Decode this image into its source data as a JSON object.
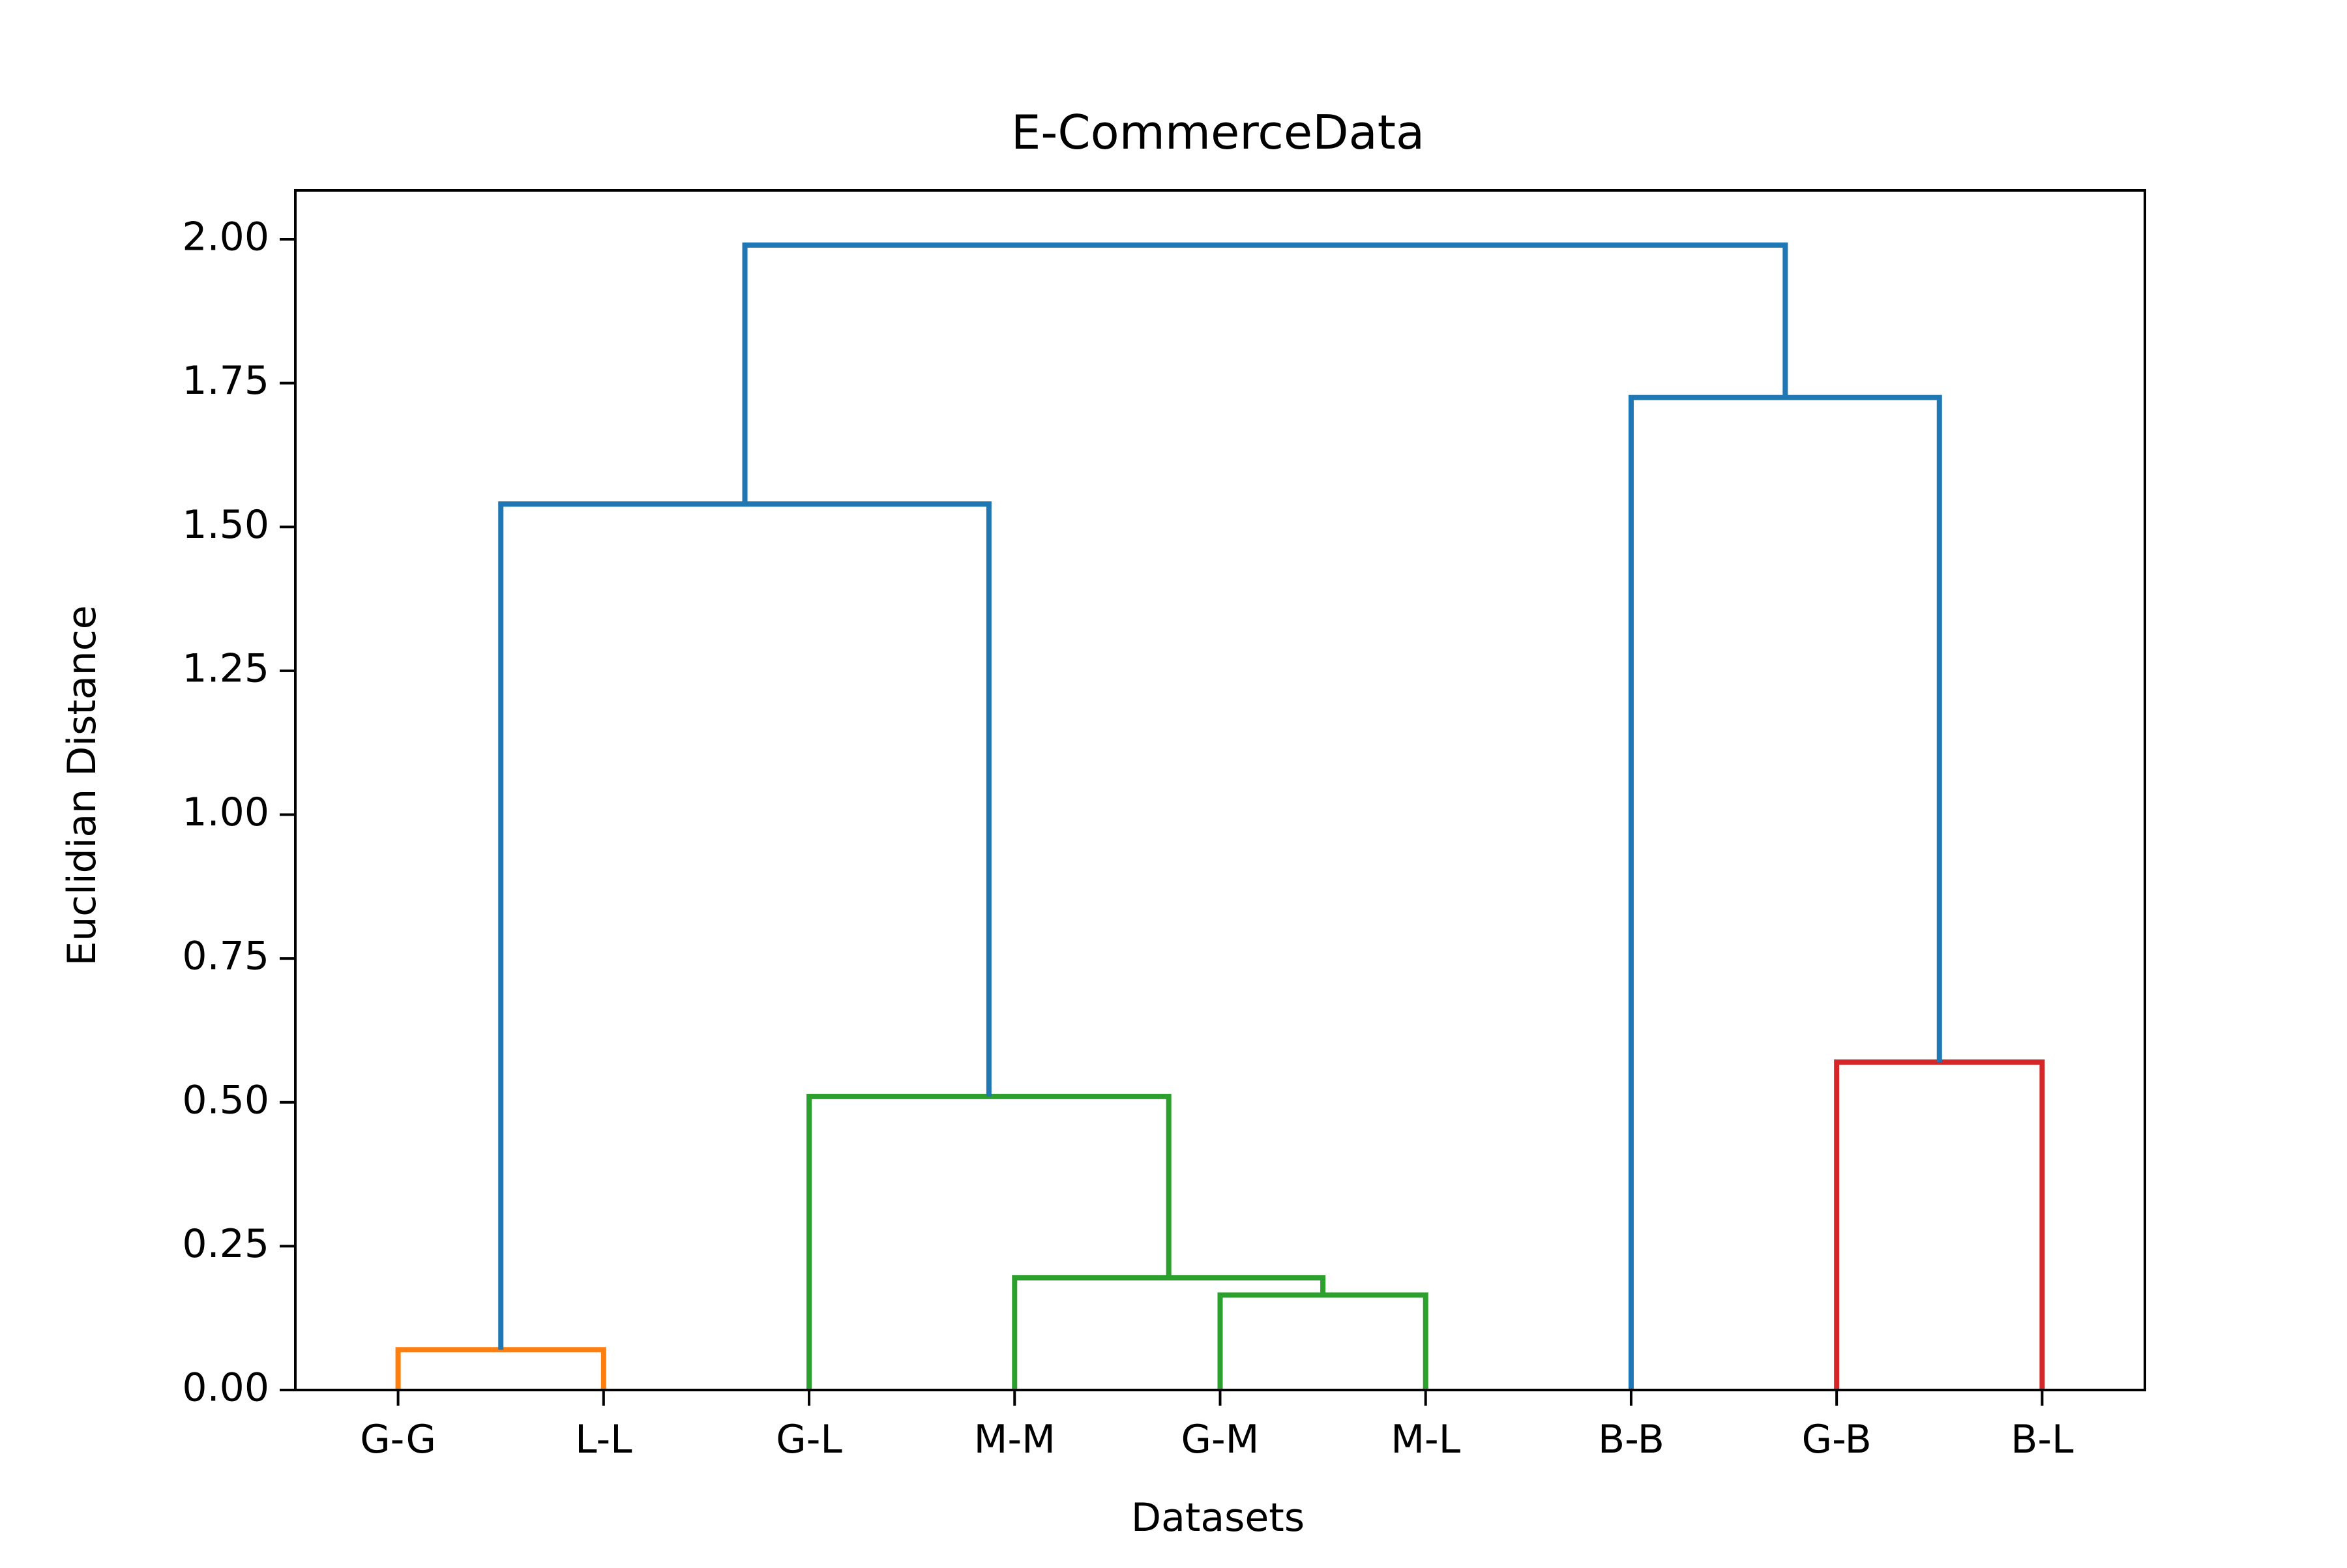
{
  "chart_data": {
    "type": "dendrogram",
    "title": "E-CommerceData",
    "xlabel": "Datasets",
    "ylabel": "Euclidian Distance",
    "ylim": [
      0,
      2.085
    ],
    "yticks": [
      "0.00",
      "0.25",
      "0.50",
      "0.75",
      "1.00",
      "1.25",
      "1.50",
      "1.75",
      "2.00"
    ],
    "leaves": [
      "G-G",
      "L-L",
      "G-L",
      "M-M",
      "G-M",
      "M-L",
      "B-B",
      "G-B",
      "B-L"
    ],
    "grid": false,
    "colors": {
      "orange": "#ff7f0e",
      "green": "#2ca02c",
      "red": "#d62728",
      "blue": "#1f77b4"
    },
    "links": [
      {
        "left": "G-G",
        "right": "L-L",
        "height": 0.07,
        "color": "orange"
      },
      {
        "left": "G-M",
        "right": "M-L",
        "height": 0.165,
        "color": "green"
      },
      {
        "left": "M-M",
        "right": "(G-M, M-L)",
        "height": 0.195,
        "color": "green"
      },
      {
        "left": "G-L",
        "right": "(M-M, G-M, M-L)",
        "height": 0.51,
        "color": "green"
      },
      {
        "left": "G-B",
        "right": "B-L",
        "height": 0.57,
        "color": "red"
      },
      {
        "left": "(G-G, L-L)",
        "right": "(G-L, M-M, G-M, M-L)",
        "height": 1.54,
        "color": "blue"
      },
      {
        "left": "B-B",
        "right": "(G-B, B-L)",
        "height": 1.725,
        "color": "blue"
      },
      {
        "left": "(G-G ... M-L)",
        "right": "(B-B, G-B, B-L)",
        "height": 1.99,
        "color": "blue"
      }
    ]
  }
}
